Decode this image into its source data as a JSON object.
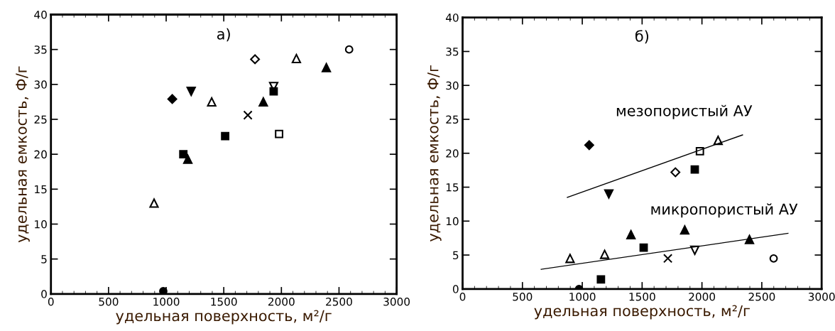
{
  "chart_data": [
    {
      "type": "scatter",
      "title": "а)",
      "xlabel": "удельная поверхность, м²/г",
      "ylabel": "удельная емкость, Ф/г",
      "xlim": [
        0,
        3000
      ],
      "ylim": [
        0,
        40
      ],
      "xticks": [
        0,
        500,
        1000,
        1500,
        2000,
        2500,
        3000
      ],
      "yticks": [
        0,
        5,
        10,
        15,
        20,
        25,
        30,
        35,
        40
      ],
      "grid": false,
      "series": [
        {
          "marker": "diamond",
          "color": "#000000",
          "x": [
            1053
          ],
          "values": [
            27.9
          ]
        },
        {
          "marker": "diamond",
          "color": "#ffffff",
          "x": [
            1771
          ],
          "values": [
            33.6
          ]
        },
        {
          "marker": "triangle_down",
          "color": "#000000",
          "x": [
            1217
          ],
          "values": [
            29.0
          ]
        },
        {
          "marker": "triangle_down",
          "color": "#ffffff",
          "x": [
            1933
          ],
          "values": [
            29.7
          ]
        },
        {
          "marker": "triangle",
          "color": "#000000",
          "x": [
            2390,
            1843,
            1188
          ],
          "values": [
            32.4,
            27.5,
            19.3
          ]
        },
        {
          "marker": "triangle",
          "color": "#ffffff",
          "x": [
            2130,
            1395,
            895
          ],
          "values": [
            33.7,
            27.5,
            13.0
          ]
        },
        {
          "marker": "circle",
          "color": "#ffffff",
          "x": [
            2588
          ],
          "values": [
            35.0
          ]
        },
        {
          "marker": "circle",
          "color": "#000000",
          "x": [
            975
          ],
          "values": [
            0.4
          ]
        },
        {
          "marker": "square",
          "color": "#000000",
          "x": [
            1933,
            1512,
            1149
          ],
          "values": [
            29.0,
            22.6,
            20.0
          ]
        },
        {
          "marker": "square",
          "color": "#ffffff",
          "x": [
            1980
          ],
          "values": [
            22.9
          ]
        },
        {
          "marker": "cross",
          "color": "#000000",
          "x": [
            1709
          ],
          "values": [
            25.6
          ]
        }
      ]
    },
    {
      "type": "scatter",
      "title": "б)",
      "xlabel": "удельная поверхность, м²/г",
      "ylabel": "удельная емкость, Ф/г",
      "xlim": [
        0,
        3000
      ],
      "ylim": [
        0,
        40
      ],
      "xticks": [
        0,
        500,
        1000,
        1500,
        2000,
        2500,
        3000
      ],
      "yticks": [
        0,
        5,
        10,
        15,
        20,
        25,
        30,
        35,
        40
      ],
      "grid": false,
      "series": [
        {
          "marker": "diamond",
          "color": "#000000",
          "x": [
            1058
          ],
          "values": [
            21.2
          ]
        },
        {
          "marker": "diamond",
          "color": "#ffffff",
          "x": [
            1778
          ],
          "values": [
            17.2
          ]
        },
        {
          "marker": "triangle_down",
          "color": "#000000",
          "x": [
            1222
          ],
          "values": [
            14.0
          ]
        },
        {
          "marker": "triangle_down",
          "color": "#ffffff",
          "x": [
            1940
          ],
          "values": [
            5.7
          ]
        },
        {
          "marker": "triangle",
          "color": "#000000",
          "x": [
            2397,
            1856,
            1407
          ],
          "values": [
            7.3,
            8.7,
            8.0
          ]
        },
        {
          "marker": "triangle",
          "color": "#ffffff",
          "x": [
            2135,
            898,
            1187
          ],
          "values": [
            21.9,
            4.5,
            5.1
          ]
        },
        {
          "marker": "circle",
          "color": "#ffffff",
          "x": [
            2599
          ],
          "values": [
            4.5
          ]
        },
        {
          "marker": "circle",
          "color": "#000000",
          "x": [
            973
          ],
          "values": [
            0.0
          ]
        },
        {
          "marker": "square",
          "color": "#000000",
          "x": [
            1940,
            1513,
            1156
          ],
          "values": [
            17.6,
            6.1,
            1.4
          ]
        },
        {
          "marker": "square",
          "color": "#ffffff",
          "x": [
            1983
          ],
          "values": [
            20.3
          ]
        },
        {
          "marker": "cross",
          "color": "#000000",
          "x": [
            1715
          ],
          "values": [
            4.5
          ]
        },
        {
          "type": "line",
          "name": "мезопористый АУ",
          "marker": "none",
          "color": "#000000",
          "x": [
            875,
            2339
          ],
          "values": [
            13.5,
            22.7
          ]
        },
        {
          "type": "line",
          "name": "микропористый АУ",
          "marker": "none",
          "color": "#000000",
          "x": [
            657,
            2719
          ],
          "values": [
            2.9,
            8.2
          ]
        }
      ]
    }
  ]
}
